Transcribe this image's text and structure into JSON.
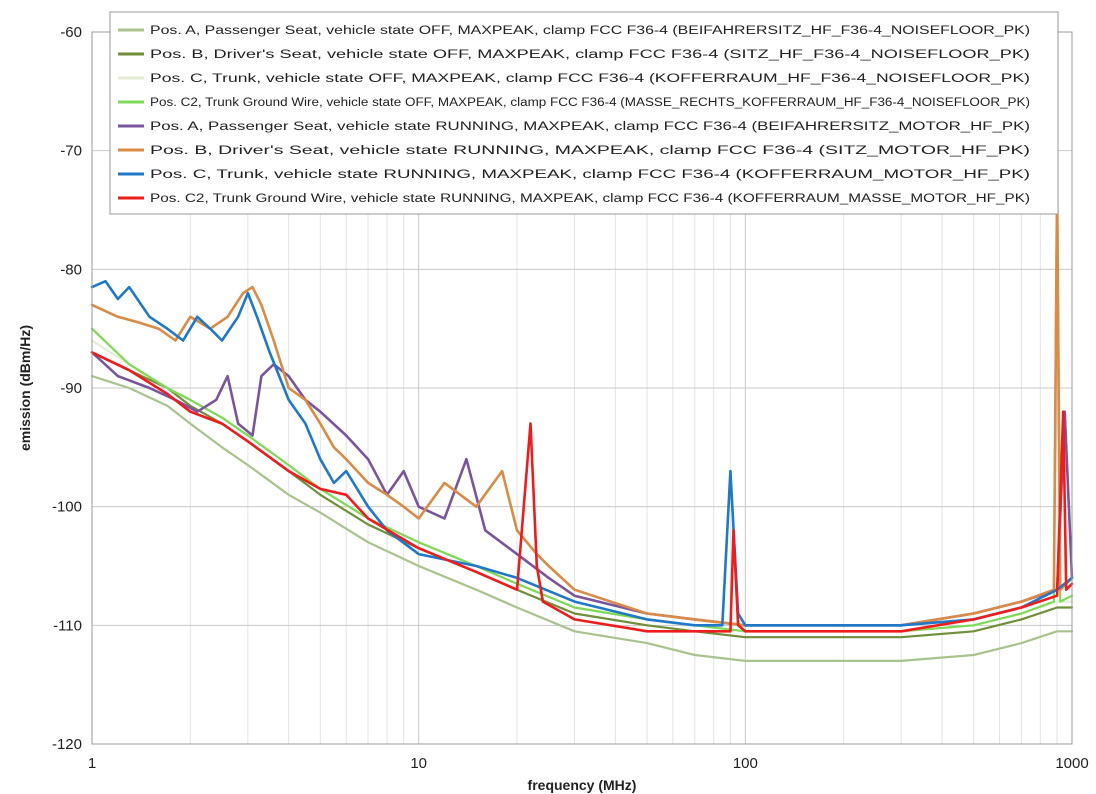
{
  "chart_data": {
    "type": "line",
    "xlabel": "frequency (MHz)",
    "ylabel": "emission (dBm/Hz)",
    "x_scale": "log",
    "xlim": [
      1,
      1000
    ],
    "ylim": [
      -120,
      -60
    ],
    "x_ticks": [
      1,
      10,
      100,
      1000
    ],
    "x_tick_labels": [
      "1",
      "10",
      "100",
      "1000"
    ],
    "y_ticks": [
      -60,
      -70,
      -80,
      -90,
      -100,
      -110,
      -120
    ],
    "y_tick_labels": [
      "-60",
      "-70",
      "-80",
      "-90",
      "-100",
      "-110",
      "-120"
    ],
    "grid": true,
    "legend_position": "top-right",
    "series": [
      {
        "name": "Pos. A, Passenger Seat, vehicle state OFF, MAXPEAK, clamp FCC F36-4 (BEIFAHRERSITZ_HF_F36-4_NOISEFLOOR_PK)",
        "color": "#a9c38e",
        "x": [
          1,
          1.3,
          1.7,
          2,
          2.5,
          3,
          4,
          5,
          7,
          10,
          15,
          20,
          30,
          50,
          70,
          100,
          150,
          200,
          300,
          500,
          700,
          900,
          1000
        ],
        "y": [
          -89,
          -90,
          -91.5,
          -93,
          -95,
          -96.5,
          -99,
          -100.5,
          -103,
          -105,
          -107,
          -108.5,
          -110.5,
          -111.5,
          -112.5,
          -113,
          -113,
          -113,
          -113,
          -112.5,
          -111.5,
          -110.5,
          -110.5
        ]
      },
      {
        "name": "Pos. B, Driver's Seat, vehicle state OFF, MAXPEAK, clamp FCC F36-4 (SITZ_HF_F36-4_NOISEFLOOR_PK)",
        "color": "#6f8f3a",
        "x": [
          1,
          1.3,
          1.7,
          2,
          2.5,
          3,
          4,
          5,
          7,
          10,
          15,
          20,
          30,
          50,
          70,
          100,
          150,
          200,
          300,
          500,
          700,
          900,
          1000
        ],
        "y": [
          -87,
          -88.5,
          -90,
          -91.5,
          -93,
          -94.5,
          -97,
          -99,
          -101.5,
          -103.5,
          -105.5,
          -107,
          -109,
          -110,
          -110.5,
          -111,
          -111,
          -111,
          -111,
          -110.5,
          -109.5,
          -108.5,
          -108.5
        ]
      },
      {
        "name": "Pos. C, Trunk, vehicle state OFF, MAXPEAK, clamp FCC F36-4 (KOFFERRAUM_HF_F36-4_NOISEFLOOR_PK)",
        "color": "#e4ecd4",
        "x": [
          1,
          1.3,
          1.7,
          2,
          2.5,
          3,
          4,
          5,
          7,
          10,
          15,
          20,
          30,
          50,
          70,
          100,
          150,
          200,
          300,
          500,
          700,
          900,
          1000
        ],
        "y": [
          -86,
          -88,
          -90,
          -91,
          -92.5,
          -94,
          -96.5,
          -98.5,
          -101,
          -103,
          -105,
          -106.5,
          -108.5,
          -109.5,
          -110,
          -110.5,
          -110.5,
          -110.5,
          -110.5,
          -110,
          -109,
          -108,
          -108
        ]
      },
      {
        "name": "Pos. C2, Trunk Ground Wire, vehicle state OFF, MAXPEAK, clamp FCC F36-4 (MASSE_RECHTS_KOFFERRAUM_HF_F36-4_NOISEFLOOR_PK)",
        "color": "#7ed957",
        "x": [
          1,
          1.3,
          1.7,
          2,
          2.5,
          3,
          4,
          5,
          7,
          10,
          15,
          20,
          30,
          50,
          70,
          100,
          150,
          200,
          300,
          500,
          700,
          880,
          900,
          920,
          1000
        ],
        "y": [
          -85,
          -88,
          -90,
          -91,
          -92.5,
          -94,
          -96.5,
          -98.5,
          -101,
          -103,
          -105,
          -106.5,
          -108.5,
          -109.5,
          -110,
          -110.5,
          -110.5,
          -110.5,
          -110.5,
          -110,
          -109,
          -108,
          -71,
          -108,
          -107.5
        ]
      },
      {
        "name": "Pos. A, Passenger Seat, vehicle state RUNNING, MAXPEAK, clamp FCC F36-4 (BEIFAHRERSITZ_MOTOR_HF_PK)",
        "color": "#7a559e",
        "x": [
          1,
          1.2,
          1.5,
          1.8,
          2.1,
          2.4,
          2.6,
          2.8,
          3.1,
          3.3,
          3.6,
          4,
          4.5,
          5,
          6,
          7,
          8,
          9,
          10,
          12,
          14,
          16,
          20,
          25,
          30,
          50,
          70,
          100,
          200,
          300,
          500,
          700,
          900,
          950,
          1000
        ],
        "y": [
          -87,
          -89,
          -90,
          -91,
          -92,
          -91,
          -89,
          -93,
          -94,
          -89,
          -88,
          -89,
          -91,
          -92,
          -94,
          -96,
          -99,
          -97,
          -100,
          -101,
          -96,
          -102,
          -104,
          -106,
          -107.5,
          -109,
          -109.5,
          -110,
          -110,
          -110,
          -109,
          -108,
          -107,
          -92,
          -106
        ]
      },
      {
        "name": "Pos. B, Driver's Seat, vehicle state RUNNING, MAXPEAK, clamp FCC F36-4 (SITZ_MOTOR_HF_PK)",
        "color": "#d98b47",
        "x": [
          1,
          1.2,
          1.4,
          1.6,
          1.8,
          2,
          2.3,
          2.6,
          2.9,
          3.1,
          3.3,
          3.6,
          4,
          4.5,
          5,
          5.5,
          6,
          7,
          8,
          9,
          10,
          12,
          15,
          18,
          20,
          23,
          25,
          30,
          50,
          70,
          100,
          200,
          300,
          500,
          700,
          880,
          900,
          920,
          1000
        ],
        "y": [
          -83,
          -84,
          -84.5,
          -85,
          -86,
          -84,
          -85,
          -84,
          -82,
          -81.5,
          -83,
          -86,
          -90,
          -91,
          -93,
          -95,
          -96,
          -98,
          -99,
          -100,
          -101,
          -98,
          -100,
          -97,
          -102,
          -104,
          -105,
          -107,
          -109,
          -109.5,
          -110,
          -110,
          -110,
          -109,
          -108,
          -107,
          -73,
          -107,
          -106
        ]
      },
      {
        "name": "Pos. C, Trunk, vehicle state RUNNING, MAXPEAK, clamp FCC F36-4 (KOFFERRAUM_MOTOR_HF_PK)",
        "color": "#1f78c8",
        "x": [
          1,
          1.1,
          1.2,
          1.3,
          1.5,
          1.7,
          1.9,
          2.1,
          2.3,
          2.5,
          2.8,
          3,
          3.2,
          3.5,
          4,
          4.5,
          5,
          5.5,
          6,
          7,
          8,
          10,
          15,
          20,
          30,
          50,
          70,
          85,
          90,
          95,
          100,
          200,
          300,
          500,
          700,
          900,
          1000
        ],
        "y": [
          -81.5,
          -81,
          -82.5,
          -81.5,
          -84,
          -85,
          -86,
          -84,
          -85,
          -86,
          -84,
          -82,
          -84,
          -87,
          -91,
          -93,
          -96,
          -98,
          -97,
          -100,
          -102,
          -104,
          -105,
          -106,
          -108,
          -109.5,
          -110,
          -110,
          -97,
          -109,
          -110,
          -110,
          -110,
          -109.5,
          -108.5,
          -107,
          -106
        ]
      },
      {
        "name": "Pos. C2, Trunk Ground Wire, vehicle state RUNNING, MAXPEAK, clamp FCC F36-4 (KOFFERRAUM_MASSE_MOTOR_HF_PK)",
        "color": "#ee1c1c",
        "x": [
          1,
          1.3,
          1.7,
          2,
          2.5,
          3,
          4,
          5,
          6,
          7,
          10,
          15,
          20,
          22,
          23,
          24,
          30,
          50,
          70,
          90,
          92,
          95,
          100,
          150,
          200,
          300,
          500,
          700,
          900,
          940,
          960,
          1000
        ],
        "y": [
          -87,
          -88.5,
          -90.5,
          -92,
          -93,
          -94.5,
          -97,
          -98.5,
          -99,
          -101,
          -103.5,
          -105.5,
          -107,
          -93,
          -105,
          -108,
          -109.5,
          -110.5,
          -110.5,
          -110.5,
          -102,
          -110,
          -110.5,
          -110.5,
          -110.5,
          -110.5,
          -109.5,
          -108.5,
          -107.5,
          -92,
          -107,
          -106.5
        ]
      }
    ]
  }
}
